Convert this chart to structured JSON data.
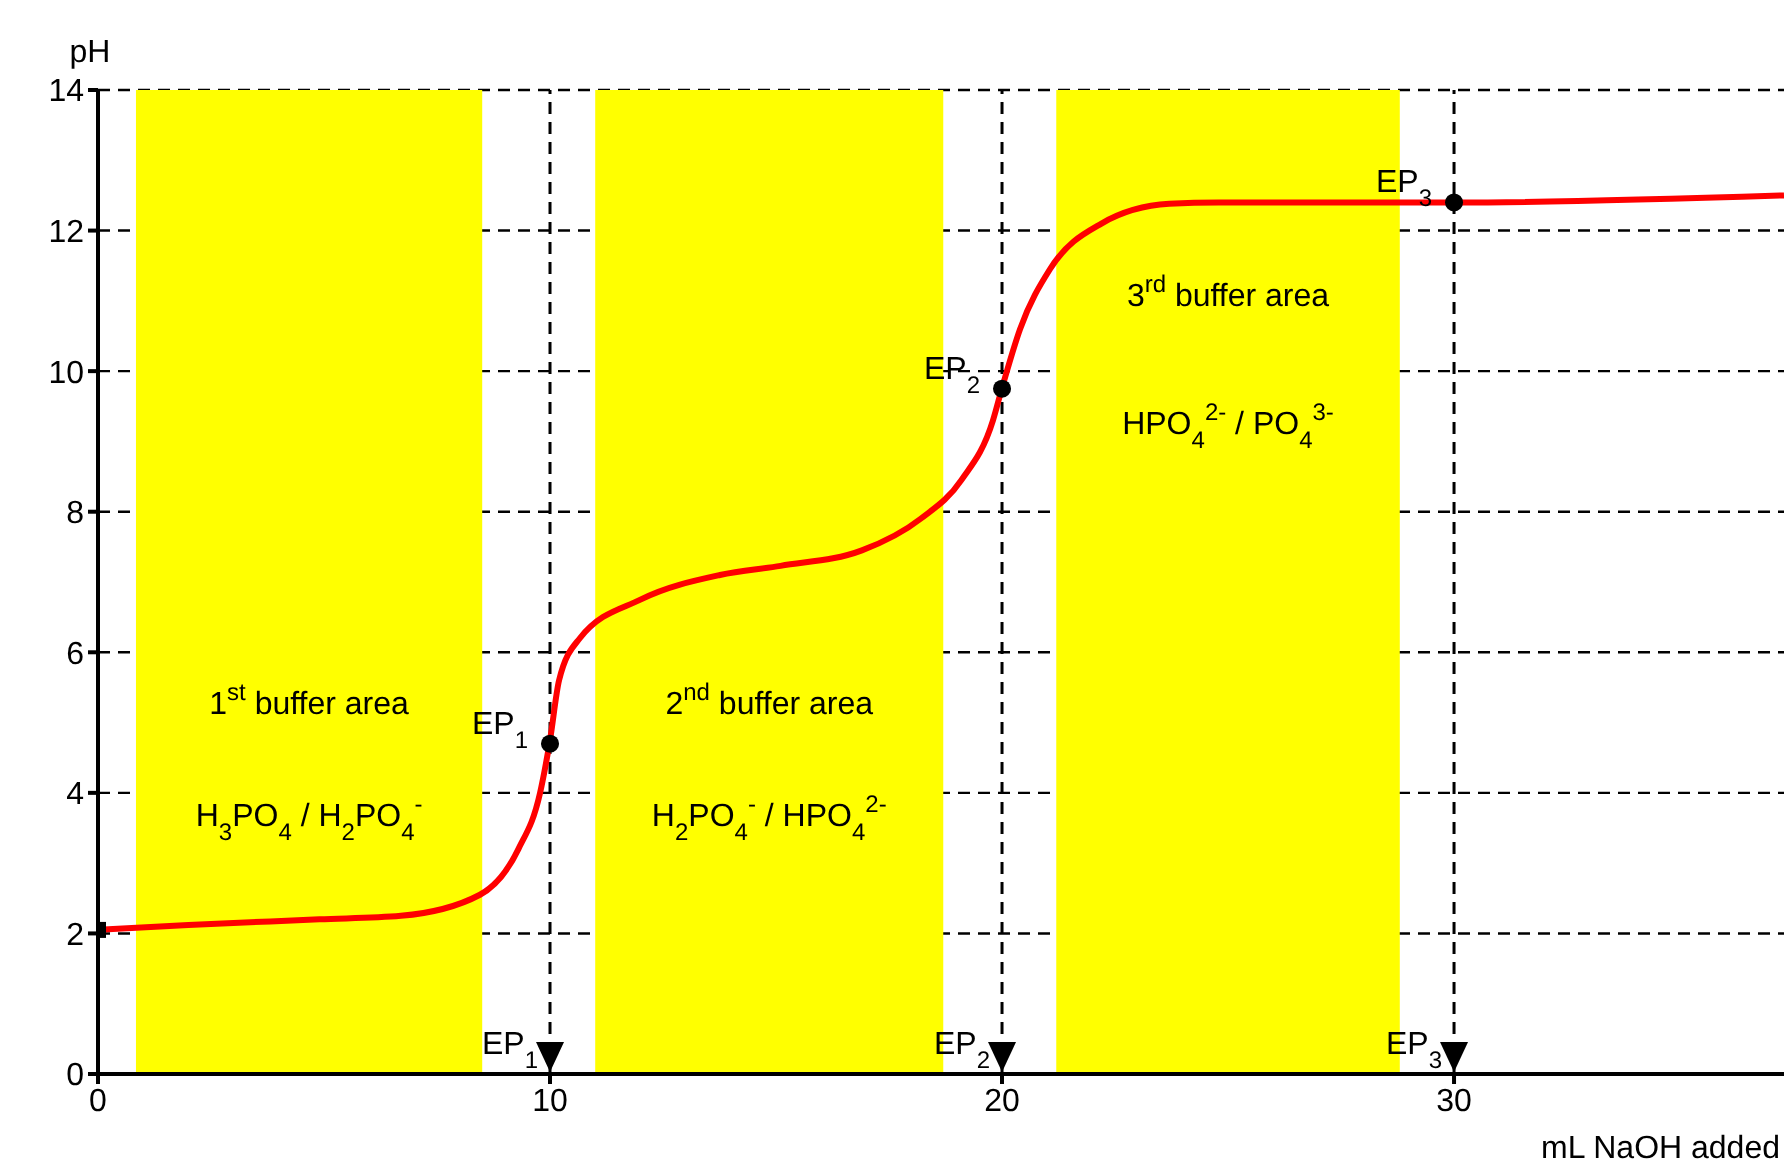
{
  "chart_data": {
    "type": "line",
    "xlabel": "mL NaOH added",
    "ylabel": "pH",
    "xlim": [
      0,
      37.3
    ],
    "ylim": [
      0,
      14
    ],
    "xticks": [
      0,
      10,
      20,
      30
    ],
    "yticks": [
      0,
      2,
      4,
      6,
      8,
      10,
      12,
      14
    ],
    "grid": "y",
    "series": [
      {
        "color": "#ff0000",
        "marker": "none",
        "x": [
          0,
          2,
          4.9,
          6.7,
          8.45,
          9.3,
          9.78,
          10,
          10.2,
          10.66,
          12,
          13.76,
          15.1,
          16.9,
          18.2,
          19.1,
          19.8,
          20,
          20.4,
          21.06,
          22.2,
          23.7,
          24.8,
          30,
          37.3
        ],
        "values": [
          2.05,
          2.12,
          2.2,
          2.25,
          2.55,
          3.2,
          4.0,
          4.75,
          5.6,
          6.2,
          6.75,
          7.1,
          7.23,
          7.45,
          7.9,
          8.45,
          9.3,
          9.76,
          10.6,
          11.45,
          12.1,
          12.38,
          12.4,
          12.4,
          12.5
        ]
      },
      {
        "type": "scatter",
        "color": "#000000",
        "marker": "square",
        "x": [
          0
        ],
        "values": [
          2.05
        ]
      },
      {
        "type": "scatter",
        "color": "#000000",
        "marker": "circle",
        "x": [
          10,
          20,
          30
        ],
        "values": [
          4.7,
          9.75,
          12.4
        ]
      }
    ],
    "bands": [
      {
        "axis": "x",
        "from": 0.84,
        "to": 8.5,
        "color": "#ffff00",
        "label": "1$^{st}$ buffer area"
      },
      {
        "axis": "x",
        "from": 11.0,
        "to": 18.7,
        "color": "#ffff00",
        "label": "2$^{nd}$ buffer area"
      },
      {
        "axis": "x",
        "from": 21.2,
        "to": 28.8,
        "color": "#ffff00",
        "label": "3$^{rd}$ buffer area"
      }
    ],
    "ref_lines": [
      {
        "axis": "x",
        "value": 10,
        "label": "EP$_{1}$",
        "color": "#000000",
        "line_style": "dashed"
      },
      {
        "axis": "x",
        "value": 20,
        "label": "EP$_{2}$",
        "color": "#000000",
        "line_style": "dashed"
      },
      {
        "axis": "x",
        "value": 30,
        "label": "EP$_{3}$",
        "color": "#000000",
        "line_style": "dashed"
      }
    ],
    "annotations": [
      {
        "text": "EP$_{1}$",
        "x": 10,
        "y": 4.7
      },
      {
        "text": "EP$_{2}$",
        "x": 20,
        "y": 9.75
      },
      {
        "text": "EP$_{3}$",
        "x": 30,
        "y": 12.4
      },
      "H$_{3}$PO$_{4}$ / H$_{2}$PO$_{4}$$^{-}$",
      "H$_{2}$PO$_{4}$$^{-}$ / HPO$_{4}$$^{2-}$",
      "HPO$_{4}$$^{2-}$ / PO$_{4}$$^{3-}$"
    ]
  }
}
